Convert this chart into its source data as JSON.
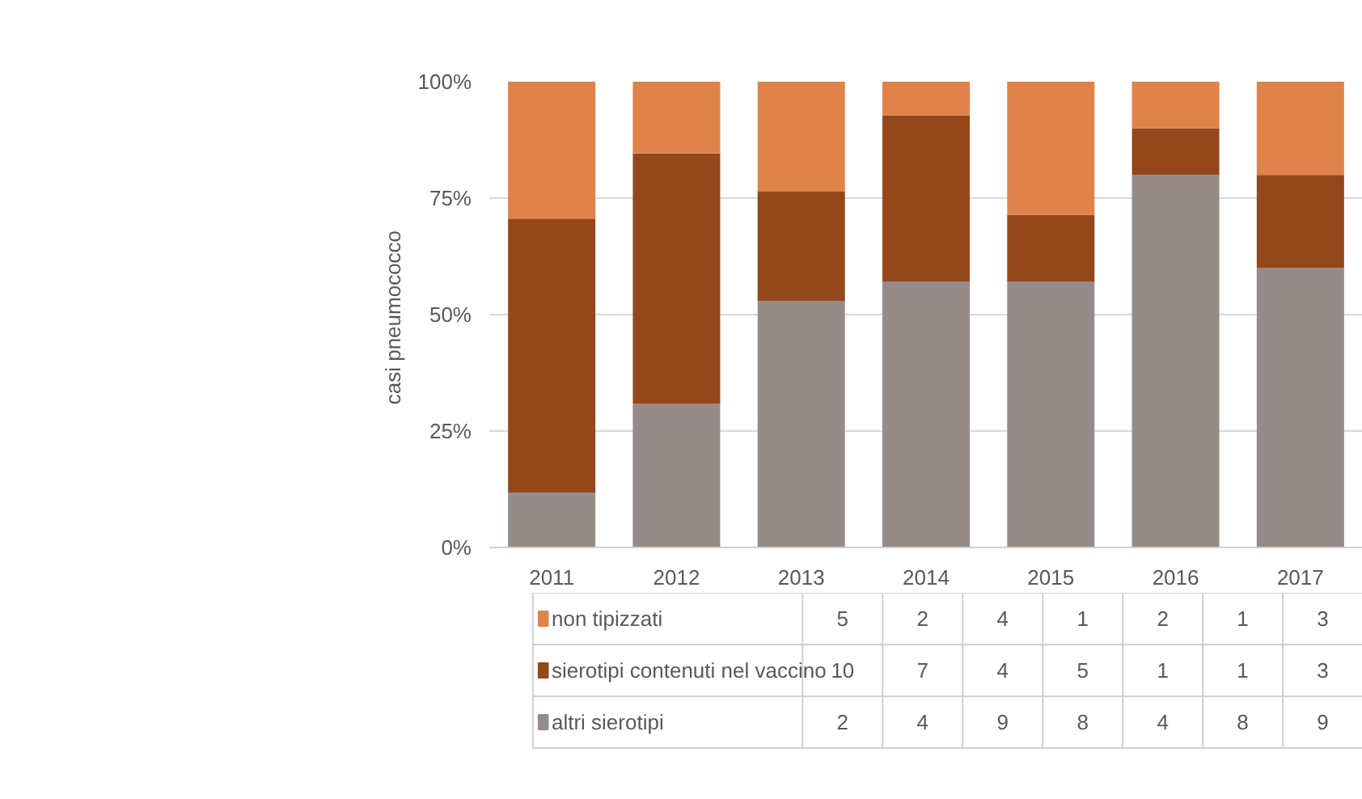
{
  "chart_data": {
    "type": "bar",
    "stacked": true,
    "ylabel": "casi  pneumococco",
    "categories": [
      "2011",
      "2012",
      "2013",
      "2014",
      "2015",
      "2016",
      "2017"
    ],
    "series": [
      {
        "name": "altri sierotipi",
        "color": "#958b89",
        "values": [
          11.8,
          30.8,
          52.9,
          57.1,
          57.1,
          80,
          60
        ]
      },
      {
        "name": "sierotipi contenuti nel vaccino",
        "color": "#94471b",
        "values": [
          58.8,
          53.8,
          23.5,
          35.7,
          14.3,
          10,
          20
        ]
      },
      {
        "name": "non tipizzati",
        "color": "#e0834a",
        "values": [
          29.4,
          15.4,
          23.6,
          7.2,
          28.6,
          10,
          20
        ]
      }
    ],
    "annotations": [
      "5",
      "2",
      "4",
      "1",
      "2",
      "1",
      "3",
      "10",
      "7",
      "4",
      "5",
      "1",
      "1",
      "3",
      "2",
      "4",
      "9",
      "8",
      "4",
      "8",
      "9"
    ],
    "ylim": [
      0,
      100
    ],
    "yticks": [
      {
        "value": 0,
        "label": "0%"
      },
      {
        "value": 25,
        "label": "25%"
      },
      {
        "value": 50,
        "label": "50%"
      },
      {
        "value": 75,
        "label": "75%"
      },
      {
        "value": 100,
        "label": "100%"
      }
    ],
    "grid": "y",
    "legend": "bottom left"
  }
}
